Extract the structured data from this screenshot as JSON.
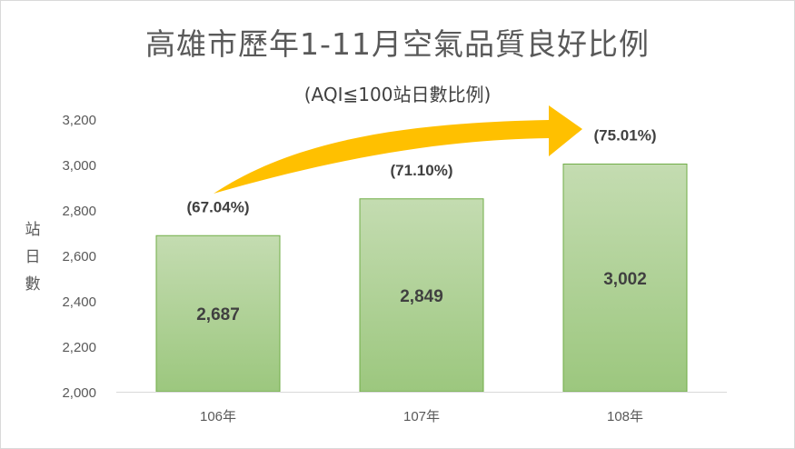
{
  "chart_data": {
    "type": "bar",
    "title": "高雄市歷年1-11月空氣品質良好比例",
    "subtitle": "(AQI≦100站日數比例)",
    "ylabel": [
      "站",
      "日",
      "數"
    ],
    "categories": [
      "106年",
      "107年",
      "108年"
    ],
    "values": [
      2687,
      2849,
      3002
    ],
    "value_labels": [
      "2,687",
      "2,849",
      "3,002"
    ],
    "percent_labels": [
      "(67.04%)",
      "(71.10%)",
      "(75.01%)"
    ],
    "ylim": [
      2000,
      3200
    ],
    "yticks": [
      2000,
      2200,
      2400,
      2600,
      2800,
      3000,
      3200
    ],
    "ytick_labels": [
      "2,000",
      "2,200",
      "2,400",
      "2,600",
      "2,800",
      "3,000",
      "3,200"
    ],
    "grid": false,
    "colors": {
      "bar_top": "#c4dcb1",
      "bar_bottom": "#9cc77e",
      "bar_border": "#70ad47",
      "arrow": "#ffc000",
      "text": "#404040",
      "axis": "#595959"
    }
  }
}
